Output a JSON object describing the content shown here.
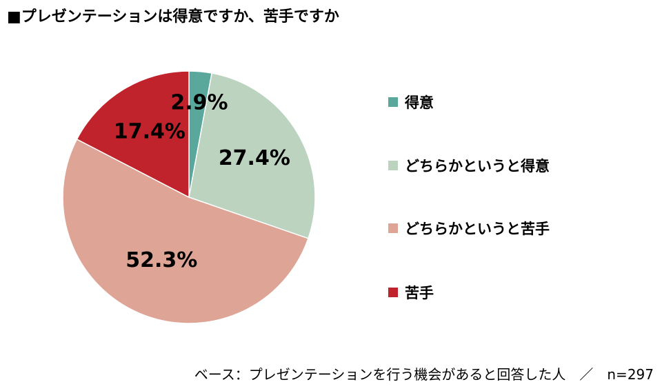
{
  "title": "■プレゼンテーションは得意ですか、苦手ですか",
  "footnote": "ベース：プレゼンテーションを行う機会があると回答した人　／　n=297",
  "chart_data": {
    "type": "pie",
    "title": "■プレゼンテーションは得意ですか、苦手ですか",
    "categories": [
      "得意",
      "どちらかというと得意",
      "どちらかというと苦手",
      "苦手"
    ],
    "values": [
      2.9,
      27.4,
      52.3,
      17.4
    ],
    "value_labels": [
      "2.9%",
      "27.4%",
      "52.3%",
      "17.4%"
    ],
    "colors": [
      "#5AA89C",
      "#BCD3BF",
      "#DEA496",
      "#C0232B"
    ],
    "start_angle": "12 o'clock",
    "direction": "clockwise",
    "legend_position": "right"
  }
}
